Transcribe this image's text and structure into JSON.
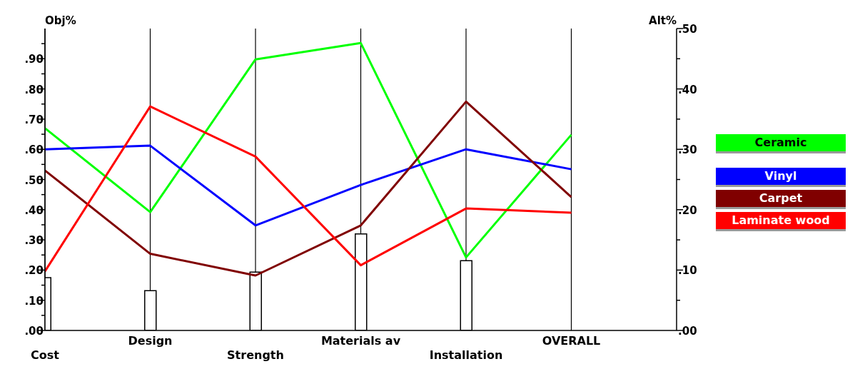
{
  "chart_data": {
    "type": "line",
    "ylabel": "Obj%",
    "y2label": "Alt%",
    "categories": [
      "Cost",
      "Design",
      "Strength",
      "Materials av",
      "Installation",
      "OVERALL"
    ],
    "ylim": [
      0,
      1
    ],
    "yticks": [
      {
        "value": 0,
        "label": ".00"
      },
      {
        "value": 0.05,
        "label": null
      },
      {
        "value": 0.1,
        "label": ".10"
      },
      {
        "value": 0.15,
        "label": null
      },
      {
        "value": 0.2,
        "label": ".20"
      },
      {
        "value": 0.25,
        "label": null
      },
      {
        "value": 0.3,
        "label": ".30"
      },
      {
        "value": 0.35,
        "label": null
      },
      {
        "value": 0.4,
        "label": ".40"
      },
      {
        "value": 0.45,
        "label": null
      },
      {
        "value": 0.5,
        "label": ".50"
      },
      {
        "value": 0.55,
        "label": null
      },
      {
        "value": 0.6,
        "label": ".60"
      },
      {
        "value": 0.65,
        "label": null
      },
      {
        "value": 0.7,
        "label": ".70"
      },
      {
        "value": 0.75,
        "label": null
      },
      {
        "value": 0.8,
        "label": ".80"
      },
      {
        "value": 0.85,
        "label": null
      },
      {
        "value": 0.9,
        "label": ".90"
      },
      {
        "value": 0.95,
        "label": null
      }
    ],
    "y2lim": [
      0,
      0.5
    ],
    "y2ticks": [
      {
        "value": 0,
        "label": ".00"
      },
      {
        "value": 0.05,
        "label": null
      },
      {
        "value": 0.1,
        "label": ".10"
      },
      {
        "value": 0.15,
        "label": null
      },
      {
        "value": 0.2,
        "label": ".20"
      },
      {
        "value": 0.25,
        "label": null
      },
      {
        "value": 0.3,
        "label": ".30"
      },
      {
        "value": 0.35,
        "label": null
      },
      {
        "value": 0.4,
        "label": ".40"
      },
      {
        "value": 0.45,
        "label": null
      },
      {
        "value": 0.5,
        "label": ".50"
      }
    ],
    "grid": "x",
    "legend": "right",
    "marker": "none",
    "series": [
      {
        "type": "bar",
        "axis": "y",
        "color": "#ffffff",
        "values": [
          0.175,
          0.132,
          0.193,
          0.32,
          0.231,
          null
        ]
      },
      {
        "name": "Ceramic",
        "axis": "y2",
        "color": "#00ff00",
        "values": [
          0.335,
          0.196,
          0.449,
          0.476,
          0.121,
          0.324
        ]
      },
      {
        "name": "Vinyl",
        "axis": "y2",
        "color": "#0000ff",
        "values": [
          0.3,
          0.306,
          0.174,
          0.241,
          0.3,
          0.267
        ]
      },
      {
        "name": "Carpet",
        "axis": "y2",
        "color": "#800000",
        "values": [
          0.265,
          0.127,
          0.091,
          0.174,
          0.379,
          0.221
        ]
      },
      {
        "name": "Laminate wood",
        "axis": "y2",
        "color": "#ff0000",
        "values": [
          0.098,
          0.371,
          0.288,
          0.108,
          0.202,
          0.195
        ]
      }
    ]
  }
}
